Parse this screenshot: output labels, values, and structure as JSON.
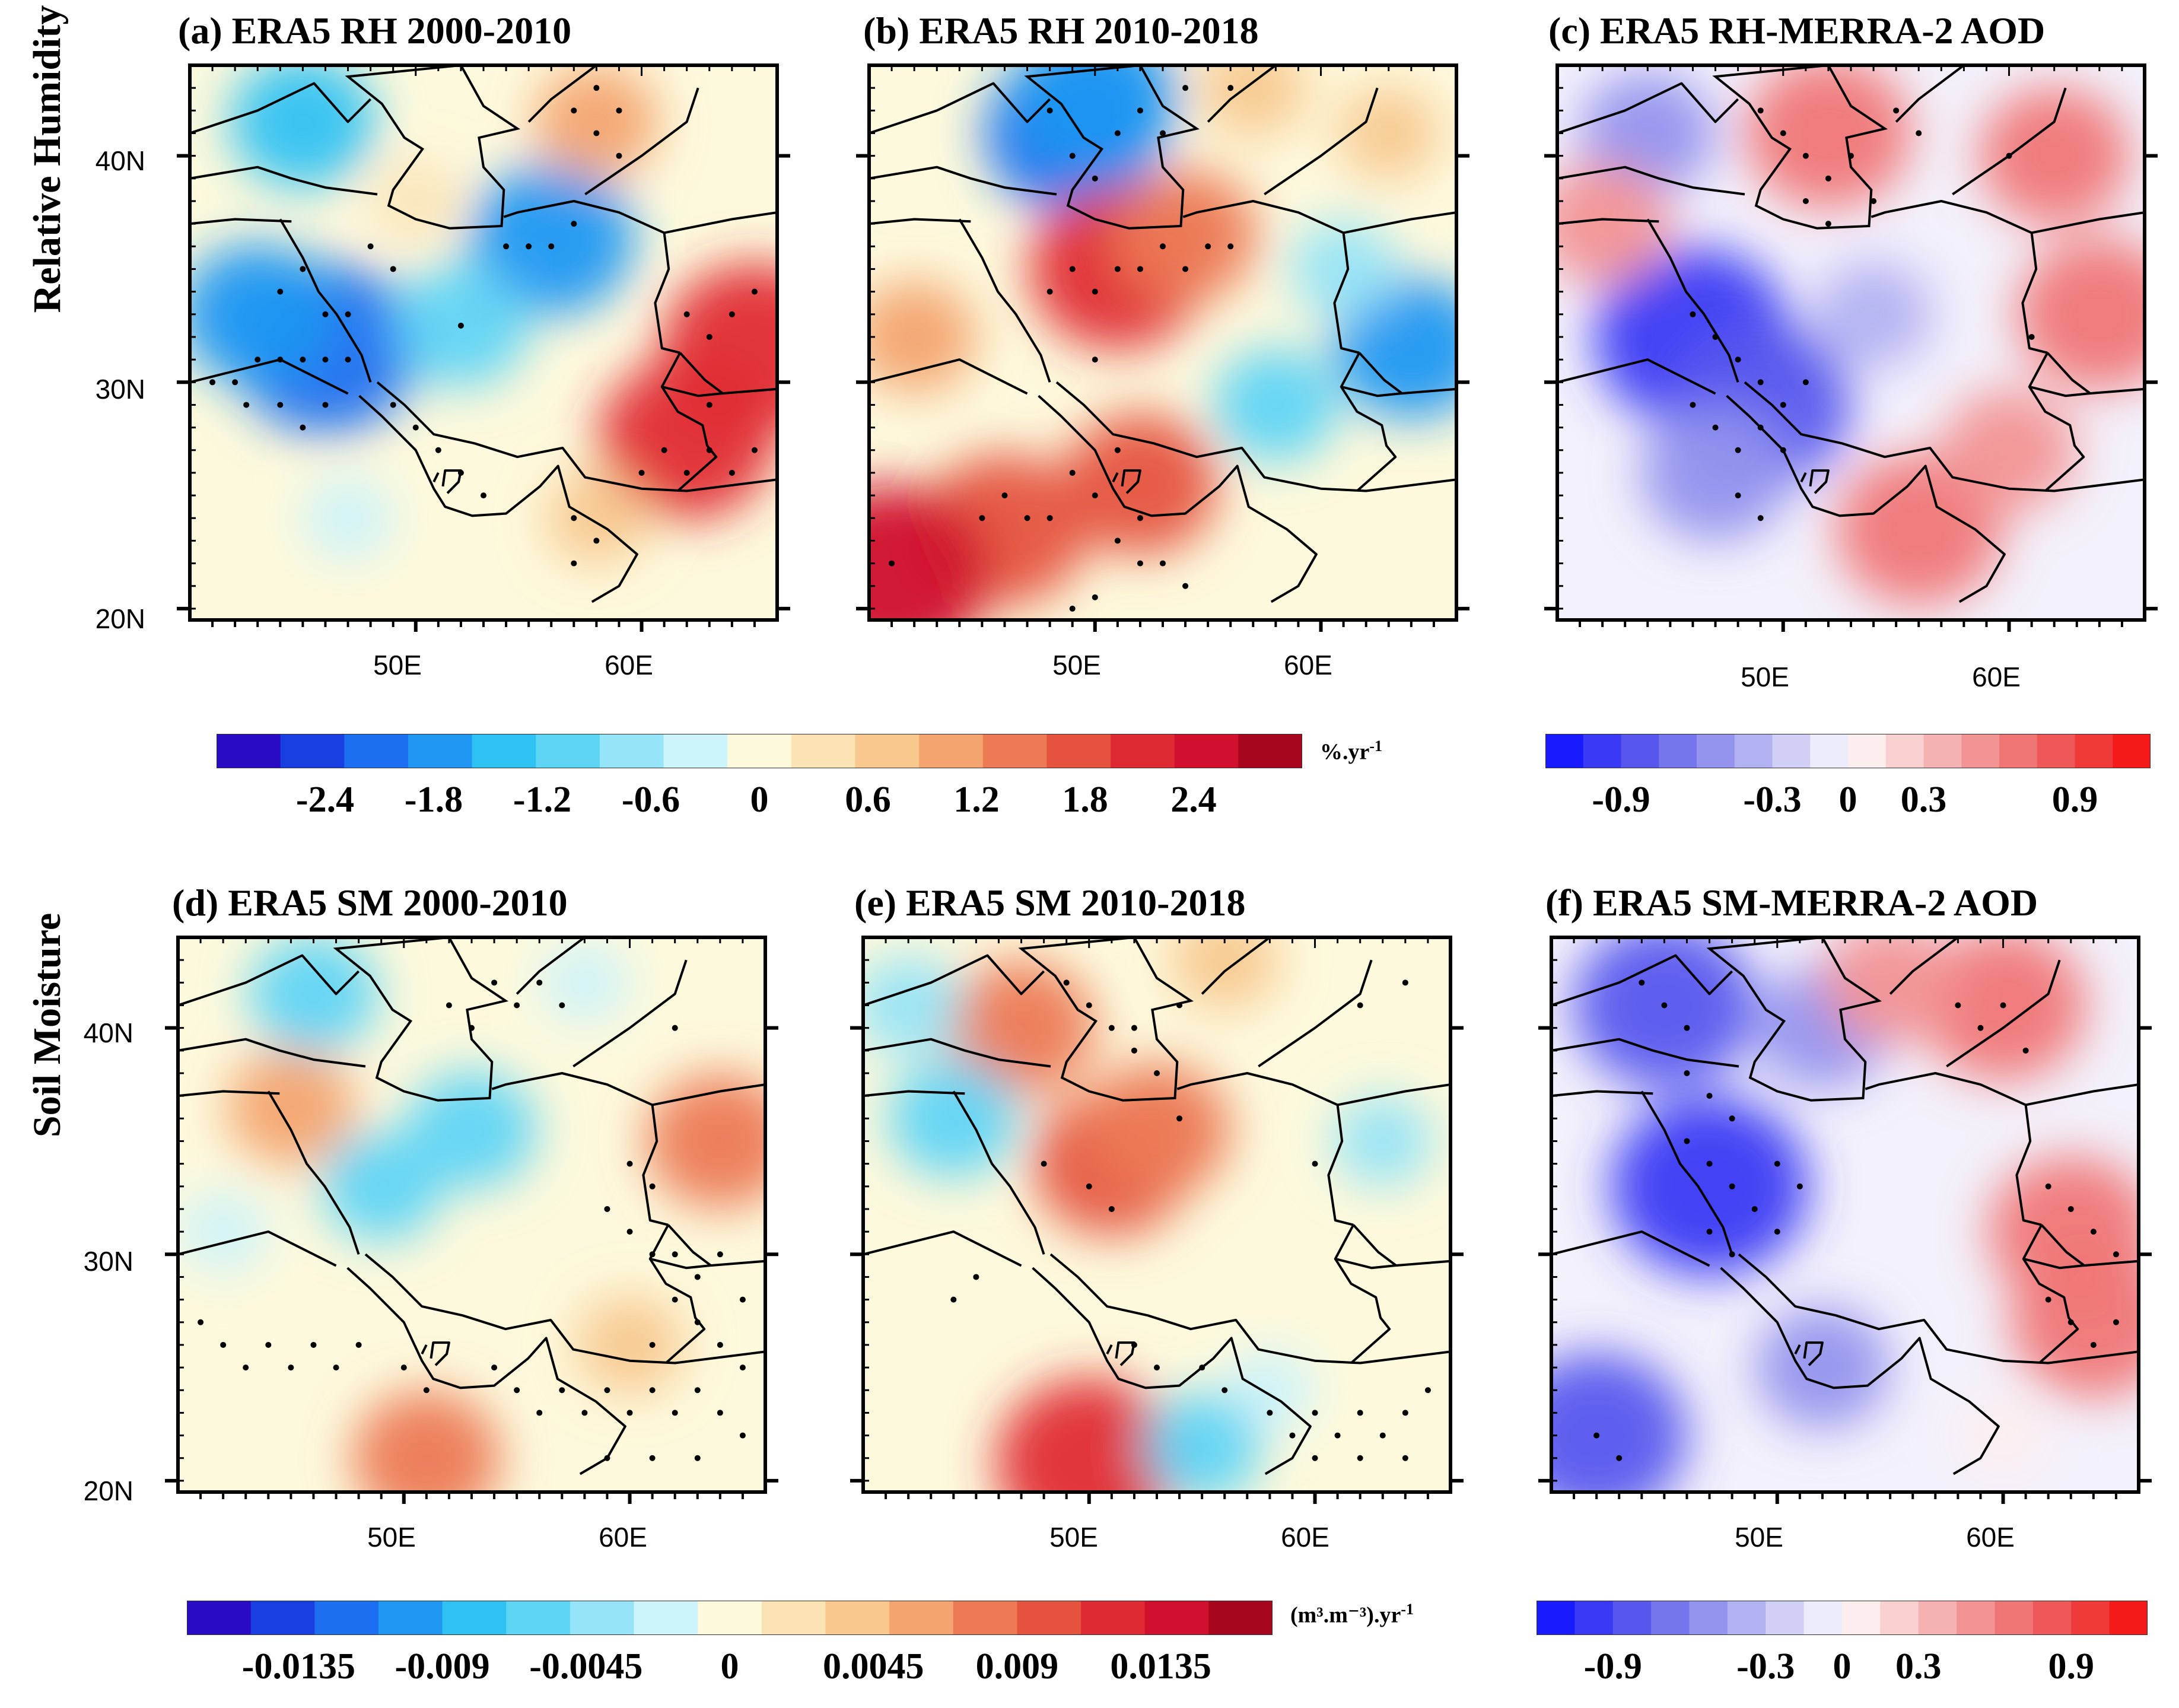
{
  "row_labels": {
    "top": "Relative Humidity",
    "bottom": "Soil Moisture"
  },
  "panels": [
    {
      "id": "a",
      "title": "(a) ERA5 RH 2000-2010",
      "scheme": "trend",
      "features": [
        {
          "lon": 45,
          "lat": 41.5,
          "v": -1.4
        },
        {
          "lon": 46,
          "lat": 31.5,
          "v": -2.2
        },
        {
          "lon": 43,
          "lat": 33,
          "v": -1.6
        },
        {
          "lon": 56,
          "lat": 36.3,
          "v": -1.8
        },
        {
          "lon": 52,
          "lat": 32.5,
          "v": -1.2
        },
        {
          "lon": 47,
          "lat": 24,
          "v": -0.4
        },
        {
          "lon": 58,
          "lat": 41.5,
          "v": 1.0
        },
        {
          "lon": 62,
          "lat": 27.5,
          "v": 2.0
        },
        {
          "lon": 65,
          "lat": 31.5,
          "v": 2.2
        },
        {
          "lon": 58,
          "lat": 24,
          "v": 0.6
        },
        {
          "lon": 50,
          "lat": 38,
          "v": 0.3
        }
      ],
      "stipple": [
        [
          41,
          30
        ],
        [
          42,
          30
        ],
        [
          42.5,
          29
        ],
        [
          43,
          31
        ],
        [
          44,
          31
        ],
        [
          45,
          31
        ],
        [
          46,
          31
        ],
        [
          47,
          31
        ],
        [
          44,
          29
        ],
        [
          45,
          28
        ],
        [
          46,
          29
        ],
        [
          47,
          33
        ],
        [
          44,
          34
        ],
        [
          45,
          35
        ],
        [
          48,
          36
        ],
        [
          49,
          35
        ],
        [
          46,
          33
        ],
        [
          52,
          32.5
        ],
        [
          54,
          36
        ],
        [
          55,
          36
        ],
        [
          56,
          36
        ],
        [
          57,
          37
        ],
        [
          49,
          29
        ],
        [
          50,
          28
        ],
        [
          51,
          27
        ],
        [
          52,
          26
        ],
        [
          53,
          25
        ],
        [
          59,
          42
        ],
        [
          57,
          42
        ],
        [
          58,
          41
        ],
        [
          58,
          43
        ],
        [
          59,
          40
        ],
        [
          62,
          33
        ],
        [
          63,
          32
        ],
        [
          64,
          33
        ],
        [
          65,
          34
        ],
        [
          63,
          29
        ],
        [
          61,
          27
        ],
        [
          60,
          26
        ],
        [
          62,
          26
        ],
        [
          63,
          27
        ],
        [
          64,
          26
        ],
        [
          65,
          27
        ],
        [
          57,
          24
        ],
        [
          58,
          23
        ],
        [
          57,
          22
        ]
      ]
    },
    {
      "id": "b",
      "title": "(b) ERA5 RH 2010-2018",
      "scheme": "trend",
      "features": [
        {
          "lon": 49,
          "lat": 41,
          "v": -2.0
        },
        {
          "lon": 50,
          "lat": 42.5,
          "v": -1.8
        },
        {
          "lon": 64,
          "lat": 31.5,
          "v": -1.6
        },
        {
          "lon": 58,
          "lat": 29,
          "v": -1.0
        },
        {
          "lon": 61,
          "lat": 35,
          "v": -0.7
        },
        {
          "lon": 51,
          "lat": 35,
          "v": 2.0
        },
        {
          "lon": 54,
          "lat": 36.5,
          "v": 1.4
        },
        {
          "lon": 46,
          "lat": 23.5,
          "v": 1.8
        },
        {
          "lon": 41,
          "lat": 21.5,
          "v": 2.4
        },
        {
          "lon": 42,
          "lat": 32,
          "v": 1.0
        },
        {
          "lon": 57,
          "lat": 43,
          "v": 0.7
        },
        {
          "lon": 63,
          "lat": 41,
          "v": 0.6
        },
        {
          "lon": 52,
          "lat": 25.5,
          "v": 1.6
        }
      ],
      "stipple": [
        [
          48,
          42
        ],
        [
          49,
          40
        ],
        [
          50,
          39
        ],
        [
          51,
          41
        ],
        [
          52,
          42
        ],
        [
          53,
          41
        ],
        [
          54,
          43
        ],
        [
          56,
          43
        ],
        [
          48,
          34
        ],
        [
          49,
          35
        ],
        [
          50,
          34
        ],
        [
          51,
          35
        ],
        [
          52,
          35
        ],
        [
          53,
          36
        ],
        [
          54,
          35
        ],
        [
          55,
          36
        ],
        [
          56,
          36
        ],
        [
          50,
          31
        ],
        [
          45,
          24
        ],
        [
          46,
          25
        ],
        [
          47,
          24
        ],
        [
          48,
          24
        ],
        [
          49,
          26
        ],
        [
          50,
          25
        ],
        [
          51,
          23
        ],
        [
          52,
          22
        ],
        [
          53,
          22
        ],
        [
          54,
          21
        ],
        [
          52,
          24
        ],
        [
          51,
          27
        ],
        [
          49,
          20
        ],
        [
          50,
          20.5
        ],
        [
          41,
          22
        ]
      ]
    },
    {
      "id": "c",
      "title": "(c) ERA5 RH-MERRA-2 AOD",
      "scheme": "corr",
      "features": [
        {
          "lon": 46,
          "lat": 32,
          "v": -0.8
        },
        {
          "lon": 49,
          "lat": 29,
          "v": -0.7
        },
        {
          "lon": 47,
          "lat": 26,
          "v": -0.5
        },
        {
          "lon": 54,
          "lat": 33,
          "v": -0.3
        },
        {
          "lon": 44,
          "lat": 41,
          "v": -0.4
        },
        {
          "lon": 52,
          "lat": 41,
          "v": 0.6
        },
        {
          "lon": 64,
          "lat": 33,
          "v": 0.6
        },
        {
          "lon": 62,
          "lat": 40,
          "v": 0.5
        },
        {
          "lon": 56,
          "lat": 23.5,
          "v": 0.6
        },
        {
          "lon": 42,
          "lat": 37,
          "v": 0.4
        },
        {
          "lon": 60,
          "lat": 27,
          "v": 0.4
        }
      ],
      "stipple": [
        [
          49,
          42
        ],
        [
          50,
          41
        ],
        [
          51,
          40
        ],
        [
          52,
          39
        ],
        [
          53,
          40
        ],
        [
          51,
          38
        ],
        [
          52,
          37
        ],
        [
          54,
          38
        ],
        [
          56,
          41
        ],
        [
          55,
          42
        ],
        [
          60,
          40
        ],
        [
          46,
          33
        ],
        [
          47,
          32
        ],
        [
          48,
          31
        ],
        [
          49,
          30
        ],
        [
          50,
          29
        ],
        [
          51,
          30
        ],
        [
          46,
          29
        ],
        [
          47,
          28
        ],
        [
          48,
          27
        ],
        [
          49,
          28
        ],
        [
          50,
          27
        ],
        [
          48,
          25
        ],
        [
          49,
          24
        ],
        [
          61,
          32
        ]
      ]
    },
    {
      "id": "d",
      "title": "(d) ERA5 SM 2000-2010",
      "scheme": "trend",
      "features": [
        {
          "lon": 46,
          "lat": 41.5,
          "v": -0.006
        },
        {
          "lon": 49,
          "lat": 33,
          "v": -0.005
        },
        {
          "lon": 53,
          "lat": 35.5,
          "v": -0.006
        },
        {
          "lon": 42,
          "lat": 31,
          "v": -0.002
        },
        {
          "lon": 45,
          "lat": 36.5,
          "v": 0.006
        },
        {
          "lon": 64,
          "lat": 35,
          "v": 0.008
        },
        {
          "lon": 60,
          "lat": 26,
          "v": 0.004
        },
        {
          "lon": 51,
          "lat": 21,
          "v": 0.008
        },
        {
          "lon": 58,
          "lat": 42,
          "v": -0.002
        }
      ],
      "stipple": [
        [
          52,
          41
        ],
        [
          53,
          40
        ],
        [
          54,
          42
        ],
        [
          55,
          41
        ],
        [
          56,
          42
        ],
        [
          57,
          41
        ],
        [
          62,
          40
        ],
        [
          60,
          34
        ],
        [
          61,
          33
        ],
        [
          59,
          32
        ],
        [
          60,
          31
        ],
        [
          61,
          30
        ],
        [
          62,
          30
        ],
        [
          63,
          29
        ],
        [
          64,
          30
        ],
        [
          65,
          28
        ],
        [
          62,
          28
        ],
        [
          63,
          27
        ],
        [
          61,
          26
        ],
        [
          64,
          26
        ],
        [
          65,
          25
        ],
        [
          41,
          27
        ],
        [
          42,
          26
        ],
        [
          43,
          25
        ],
        [
          44,
          26
        ],
        [
          45,
          25
        ],
        [
          46,
          26
        ],
        [
          47,
          25
        ],
        [
          48,
          26
        ],
        [
          50,
          25
        ],
        [
          51,
          24
        ],
        [
          54,
          25
        ],
        [
          55,
          24
        ],
        [
          56,
          23
        ],
        [
          57,
          24
        ],
        [
          58,
          23
        ],
        [
          59,
          24
        ],
        [
          60,
          23
        ],
        [
          61,
          24
        ],
        [
          62,
          23
        ],
        [
          63,
          24
        ],
        [
          64,
          23
        ],
        [
          65,
          22
        ],
        [
          63,
          21
        ],
        [
          61,
          21
        ],
        [
          59,
          21
        ]
      ]
    },
    {
      "id": "e",
      "title": "(e) ERA5 SM 2010-2018",
      "scheme": "trend",
      "features": [
        {
          "lon": 47,
          "lat": 40,
          "v": 0.008
        },
        {
          "lon": 51,
          "lat": 34,
          "v": 0.009
        },
        {
          "lon": 53,
          "lat": 35.5,
          "v": 0.008
        },
        {
          "lon": 44,
          "lat": 36,
          "v": -0.006
        },
        {
          "lon": 42,
          "lat": 41,
          "v": -0.004
        },
        {
          "lon": 63,
          "lat": 35,
          "v": -0.003
        },
        {
          "lon": 58,
          "lat": 24,
          "v": -0.002
        },
        {
          "lon": 50,
          "lat": 20.8,
          "v": 0.012
        },
        {
          "lon": 55,
          "lat": 21.5,
          "v": -0.005
        },
        {
          "lon": 56,
          "lat": 43,
          "v": 0.004
        }
      ],
      "stipple": [
        [
          49,
          42
        ],
        [
          50,
          41
        ],
        [
          51,
          40
        ],
        [
          52,
          39
        ],
        [
          53,
          38
        ],
        [
          54,
          41
        ],
        [
          52,
          40
        ],
        [
          48,
          34
        ],
        [
          50,
          33
        ],
        [
          51,
          32
        ],
        [
          54,
          36
        ],
        [
          60,
          34
        ],
        [
          62,
          41
        ],
        [
          64,
          42
        ],
        [
          44,
          28
        ],
        [
          45,
          29
        ],
        [
          52,
          26
        ],
        [
          53,
          25
        ],
        [
          55,
          25
        ],
        [
          56,
          24
        ],
        [
          58,
          23
        ],
        [
          59,
          22
        ],
        [
          60,
          23
        ],
        [
          61,
          22
        ],
        [
          62,
          23
        ],
        [
          63,
          22
        ],
        [
          64,
          23
        ],
        [
          65,
          24
        ],
        [
          64,
          21
        ],
        [
          62,
          21
        ],
        [
          60,
          21
        ]
      ]
    },
    {
      "id": "f",
      "title": "(f) ERA5 SM-MERRA-2 AOD",
      "scheme": "corr",
      "features": [
        {
          "lon": 47,
          "lat": 33,
          "v": -0.8
        },
        {
          "lon": 45,
          "lat": 41,
          "v": -0.7
        },
        {
          "lon": 52,
          "lat": 40,
          "v": -0.4
        },
        {
          "lon": 42,
          "lat": 22,
          "v": -0.7
        },
        {
          "lon": 52,
          "lat": 25,
          "v": -0.4
        },
        {
          "lon": 60,
          "lat": 41,
          "v": 0.6
        },
        {
          "lon": 63,
          "lat": 31,
          "v": 0.6
        },
        {
          "lon": 64,
          "lat": 27,
          "v": 0.6
        },
        {
          "lon": 55,
          "lat": 42,
          "v": 0.4
        },
        {
          "lon": 60,
          "lat": 22,
          "v": 0.1
        }
      ],
      "stipple": [
        [
          44,
          42
        ],
        [
          45,
          41
        ],
        [
          46,
          40
        ],
        [
          46,
          38
        ],
        [
          47,
          37
        ],
        [
          48,
          36
        ],
        [
          46,
          35
        ],
        [
          47,
          34
        ],
        [
          48,
          33
        ],
        [
          49,
          32
        ],
        [
          50,
          31
        ],
        [
          47,
          31
        ],
        [
          48,
          30
        ],
        [
          50,
          34
        ],
        [
          51,
          33
        ],
        [
          58,
          41
        ],
        [
          59,
          40
        ],
        [
          60,
          41
        ],
        [
          61,
          39
        ],
        [
          62,
          33
        ],
        [
          63,
          32
        ],
        [
          64,
          31
        ],
        [
          65,
          30
        ],
        [
          62,
          28
        ],
        [
          63,
          27
        ],
        [
          64,
          26
        ],
        [
          65,
          27
        ],
        [
          42,
          22
        ],
        [
          43,
          21
        ]
      ]
    }
  ],
  "lat_labels": [
    "40N",
    "30N",
    "20N"
  ],
  "lon_labels": [
    "50E",
    "60E"
  ],
  "colorbars": {
    "rh_trend": {
      "ticks": [
        "-2.4",
        "-1.8",
        "-1.2",
        "-0.6",
        "0",
        "0.6",
        "1.2",
        "1.8",
        "2.4"
      ],
      "unit_main": "%.yr",
      "unit_sup": "-1"
    },
    "sm_trend": {
      "ticks": [
        "-0.0135",
        "-0.009",
        "-0.0045",
        "0",
        "0.0045",
        "0.009",
        "0.0135"
      ],
      "unit_main": "(m³.m⁻³).yr",
      "unit_sup": "-1"
    },
    "corr": {
      "ticks": [
        "-0.9",
        "-0.3",
        "0",
        "0.3",
        "0.9"
      ]
    }
  },
  "colors": {
    "trend": [
      "#2a0bc4",
      "#1a3fe0",
      "#1c6ff0",
      "#1f97f2",
      "#2ec2f2",
      "#5ed4f5",
      "#96e4f7",
      "#cdf3fb",
      "#fdf9dc",
      "#fbe3b4",
      "#f8c88e",
      "#f3a46f",
      "#ec7a55",
      "#e5533f",
      "#e02a33",
      "#d0102c",
      "#a8061f"
    ],
    "corr": [
      "#1a1aff",
      "#3a3af4",
      "#5757ee",
      "#7575ec",
      "#9494ee",
      "#b2b2f2",
      "#d0d0f7",
      "#ececfc",
      "#fdeeee",
      "#f9d0d0",
      "#f5b2b2",
      "#f29494",
      "#f07676",
      "#ef5858",
      "#f03a3a",
      "#f51a1a"
    ]
  }
}
